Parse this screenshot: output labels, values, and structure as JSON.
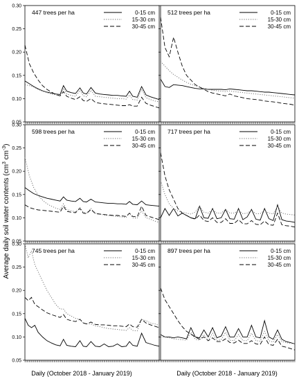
{
  "figure": {
    "ylabel_main": "Average daily soil water contents (cm",
    "ylabel_sup1": "3",
    "ylabel_mid": " cm",
    "ylabel_sup2": "-3",
    "ylabel_end": ")",
    "xlabel_left": "Daily (October 2018 - January 2019)",
    "xlabel_right": "Daily (October 2018 - January 2019)"
  },
  "chart_data": [
    {
      "type": "line",
      "title": "447 trees per ha",
      "ylim": [
        0.05,
        0.3
      ],
      "yticks": [
        0.05,
        0.1,
        0.15,
        0.2,
        0.25,
        0.3
      ],
      "ytick_labels": [
        "0.05",
        "0.10",
        "0.15",
        "0.20",
        "0.25",
        "0.30"
      ],
      "x": [
        0,
        4,
        8,
        12,
        16,
        20,
        24,
        28,
        32,
        35,
        38,
        42,
        46,
        50,
        53,
        56,
        60,
        64,
        68,
        72,
        76,
        80,
        84,
        88,
        92,
        95,
        98,
        102,
        106,
        110,
        114,
        118,
        122
      ],
      "series": [
        {
          "name": "0-15 cm",
          "style": "solid",
          "values": [
            0.138,
            0.132,
            0.126,
            0.121,
            0.117,
            0.114,
            0.112,
            0.11,
            0.109,
            0.128,
            0.116,
            0.113,
            0.111,
            0.123,
            0.112,
            0.11,
            0.124,
            0.112,
            0.11,
            0.109,
            0.108,
            0.107,
            0.107,
            0.106,
            0.105,
            0.116,
            0.105,
            0.103,
            0.126,
            0.108,
            0.104,
            0.101,
            0.098
          ]
        },
        {
          "name": "15-30 cm",
          "style": "dotted",
          "values": [
            0.13,
            0.128,
            0.125,
            0.12,
            0.116,
            0.113,
            0.11,
            0.108,
            0.106,
            0.122,
            0.11,
            0.107,
            0.105,
            0.118,
            0.106,
            0.104,
            0.118,
            0.105,
            0.104,
            0.103,
            0.102,
            0.101,
            0.1,
            0.1,
            0.099,
            0.108,
            0.098,
            0.097,
            0.12,
            0.102,
            0.098,
            0.095,
            0.093
          ]
        },
        {
          "name": "30-45 cm",
          "style": "dashed",
          "values": [
            0.215,
            0.175,
            0.155,
            0.14,
            0.128,
            0.12,
            0.114,
            0.109,
            0.106,
            0.115,
            0.105,
            0.101,
            0.098,
            0.104,
            0.096,
            0.094,
            0.1,
            0.092,
            0.09,
            0.089,
            0.088,
            0.087,
            0.086,
            0.085,
            0.085,
            0.087,
            0.084,
            0.084,
            0.103,
            0.09,
            0.086,
            0.083,
            0.08
          ]
        }
      ]
    },
    {
      "type": "line",
      "title": "512 trees per ha",
      "ylim": [
        0.05,
        0.3
      ],
      "yticks": [
        0.05,
        0.1,
        0.15,
        0.2,
        0.25,
        0.3
      ],
      "ytick_labels": [
        "",
        "",
        "",
        "",
        "",
        ""
      ],
      "x": [
        0,
        4,
        8,
        12,
        16,
        20,
        24,
        28,
        32,
        36,
        40,
        44,
        48,
        52,
        56,
        60,
        64,
        68,
        72,
        76,
        80,
        84,
        88,
        92,
        96,
        100,
        104,
        108,
        112,
        116,
        120,
        124
      ],
      "series": [
        {
          "name": "0-15 cm",
          "style": "solid",
          "values": [
            0.142,
            0.126,
            0.124,
            0.13,
            0.129,
            0.128,
            0.126,
            0.124,
            0.122,
            0.121,
            0.121,
            0.12,
            0.12,
            0.12,
            0.12,
            0.119,
            0.121,
            0.12,
            0.119,
            0.118,
            0.117,
            0.117,
            0.116,
            0.115,
            0.114,
            0.114,
            0.113,
            0.112,
            0.111,
            0.11,
            0.109,
            0.108
          ]
        },
        {
          "name": "15-30 cm",
          "style": "dotted",
          "values": [
            0.18,
            0.17,
            0.16,
            0.152,
            0.146,
            0.14,
            0.135,
            0.131,
            0.128,
            0.125,
            0.122,
            0.12,
            0.118,
            0.117,
            0.116,
            0.115,
            0.117,
            0.115,
            0.114,
            0.113,
            0.112,
            0.111,
            0.11,
            0.109,
            0.108,
            0.107,
            0.106,
            0.105,
            0.104,
            0.103,
            0.102,
            0.101
          ]
        },
        {
          "name": "30-45 cm",
          "style": "dashed",
          "values": [
            0.275,
            0.21,
            0.19,
            0.232,
            0.2,
            0.17,
            0.15,
            0.14,
            0.13,
            0.125,
            0.12,
            0.115,
            0.112,
            0.11,
            0.108,
            0.106,
            0.11,
            0.106,
            0.104,
            0.102,
            0.1,
            0.099,
            0.098,
            0.097,
            0.095,
            0.094,
            0.093,
            0.092,
            0.09,
            0.089,
            0.088,
            0.086
          ]
        }
      ]
    },
    {
      "type": "line",
      "title": "598 trees per ha",
      "ylim": [
        0.05,
        0.3
      ],
      "yticks": [
        0.05,
        0.1,
        0.15,
        0.2,
        0.25,
        0.3
      ],
      "ytick_labels": [
        "0.05",
        "0.10",
        "0.15",
        "0.20",
        "0.25",
        "0.30"
      ],
      "x": [
        0,
        4,
        8,
        12,
        16,
        20,
        24,
        28,
        32,
        35,
        38,
        42,
        46,
        50,
        53,
        56,
        60,
        64,
        68,
        72,
        76,
        80,
        84,
        88,
        92,
        95,
        98,
        102,
        106,
        110,
        114,
        118,
        122
      ],
      "series": [
        {
          "name": "0-15 cm",
          "style": "solid",
          "values": [
            0.165,
            0.158,
            0.152,
            0.148,
            0.145,
            0.142,
            0.14,
            0.138,
            0.136,
            0.145,
            0.138,
            0.136,
            0.135,
            0.142,
            0.135,
            0.134,
            0.14,
            0.134,
            0.133,
            0.132,
            0.131,
            0.131,
            0.13,
            0.13,
            0.129,
            0.135,
            0.129,
            0.128,
            0.136,
            0.128,
            0.127,
            0.126,
            0.125
          ]
        },
        {
          "name": "15-30 cm",
          "style": "dotted",
          "values": [
            0.23,
            0.19,
            0.165,
            0.148,
            0.138,
            0.13,
            0.125,
            0.121,
            0.118,
            0.13,
            0.118,
            0.115,
            0.113,
            0.122,
            0.112,
            0.11,
            0.12,
            0.11,
            0.108,
            0.106,
            0.105,
            0.104,
            0.103,
            0.102,
            0.101,
            0.11,
            0.1,
            0.099,
            0.115,
            0.1,
            0.097,
            0.093,
            0.09
          ]
        },
        {
          "name": "30-45 cm",
          "style": "dashed",
          "values": [
            0.128,
            0.122,
            0.119,
            0.117,
            0.116,
            0.115,
            0.114,
            0.113,
            0.112,
            0.125,
            0.114,
            0.112,
            0.111,
            0.12,
            0.11,
            0.109,
            0.118,
            0.109,
            0.108,
            0.107,
            0.106,
            0.105,
            0.105,
            0.104,
            0.103,
            0.11,
            0.103,
            0.102,
            0.125,
            0.105,
            0.102,
            0.099,
            0.096
          ]
        }
      ]
    },
    {
      "type": "line",
      "title": "717 trees per ha",
      "ylim": [
        0.05,
        0.3
      ],
      "yticks": [
        0.05,
        0.1,
        0.15,
        0.2,
        0.25,
        0.3
      ],
      "ytick_labels": [
        "",
        "",
        "",
        "",
        "",
        ""
      ],
      "x": [
        0,
        4,
        8,
        12,
        16,
        20,
        24,
        28,
        32,
        36,
        40,
        44,
        48,
        52,
        56,
        60,
        64,
        68,
        72,
        76,
        80,
        84,
        88,
        92,
        96,
        100,
        104,
        108,
        112,
        116,
        120,
        124
      ],
      "series": [
        {
          "name": "0-15 cm",
          "style": "solid",
          "values": [
            0.1,
            0.12,
            0.105,
            0.12,
            0.104,
            0.11,
            0.105,
            0.1,
            0.098,
            0.125,
            0.1,
            0.099,
            0.12,
            0.098,
            0.1,
            0.118,
            0.098,
            0.097,
            0.12,
            0.096,
            0.102,
            0.118,
            0.097,
            0.095,
            0.12,
            0.098,
            0.094,
            0.128,
            0.096,
            0.093,
            0.092,
            0.09
          ]
        },
        {
          "name": "15-30 cm",
          "style": "dotted",
          "values": [
            0.18,
            0.15,
            0.13,
            0.12,
            0.115,
            0.112,
            0.11,
            0.108,
            0.112,
            0.125,
            0.112,
            0.11,
            0.118,
            0.11,
            0.11,
            0.118,
            0.11,
            0.11,
            0.116,
            0.109,
            0.11,
            0.116,
            0.109,
            0.109,
            0.116,
            0.11,
            0.108,
            0.125,
            0.11,
            0.108,
            0.107,
            0.106
          ]
        },
        {
          "name": "30-45 cm",
          "style": "dashed",
          "values": [
            0.24,
            0.19,
            0.16,
            0.14,
            0.12,
            0.11,
            0.105,
            0.1,
            0.097,
            0.106,
            0.094,
            0.092,
            0.1,
            0.09,
            0.09,
            0.098,
            0.088,
            0.088,
            0.096,
            0.087,
            0.087,
            0.094,
            0.086,
            0.085,
            0.093,
            0.085,
            0.084,
            0.11,
            0.085,
            0.083,
            0.082,
            0.08
          ]
        }
      ]
    },
    {
      "type": "line",
      "title": "745 trees per ha",
      "ylim": [
        0.05,
        0.3
      ],
      "yticks": [
        0.05,
        0.1,
        0.15,
        0.2,
        0.25,
        0.3
      ],
      "ytick_labels": [
        "0.05",
        "0.10",
        "0.15",
        "0.20",
        "0.25",
        "0.30"
      ],
      "x": [
        0,
        3,
        6,
        9,
        12,
        16,
        20,
        24,
        28,
        32,
        35,
        38,
        42,
        46,
        50,
        53,
        56,
        60,
        64,
        68,
        72,
        76,
        80,
        84,
        88,
        92,
        95,
        98,
        102,
        106,
        110,
        114,
        118,
        122
      ],
      "series": [
        {
          "name": "0-15 cm",
          "style": "solid",
          "values": [
            0.14,
            0.125,
            0.12,
            0.125,
            0.11,
            0.1,
            0.092,
            0.087,
            0.083,
            0.081,
            0.095,
            0.082,
            0.08,
            0.079,
            0.092,
            0.08,
            0.079,
            0.09,
            0.08,
            0.079,
            0.085,
            0.079,
            0.08,
            0.085,
            0.079,
            0.08,
            0.09,
            0.082,
            0.08,
            0.108,
            0.088,
            0.085,
            0.082,
            0.08
          ]
        },
        {
          "name": "15-30 cm",
          "style": "dotted",
          "values": [
            0.3,
            0.27,
            0.285,
            0.255,
            0.24,
            0.22,
            0.2,
            0.185,
            0.17,
            0.16,
            0.16,
            0.15,
            0.145,
            0.14,
            0.138,
            0.13,
            0.128,
            0.128,
            0.124,
            0.122,
            0.12,
            0.118,
            0.117,
            0.116,
            0.115,
            0.114,
            0.12,
            0.114,
            0.113,
            0.138,
            0.135,
            0.13,
            0.128,
            0.125
          ]
        },
        {
          "name": "30-45 cm",
          "style": "dashed",
          "values": [
            0.185,
            0.178,
            0.185,
            0.17,
            0.165,
            0.158,
            0.152,
            0.148,
            0.145,
            0.142,
            0.148,
            0.138,
            0.135,
            0.133,
            0.138,
            0.13,
            0.128,
            0.132,
            0.127,
            0.126,
            0.126,
            0.125,
            0.124,
            0.124,
            0.123,
            0.122,
            0.128,
            0.122,
            0.121,
            0.138,
            0.13,
            0.126,
            0.123,
            0.12
          ]
        }
      ]
    },
    {
      "type": "line",
      "title": "897 trees per ha",
      "ylim": [
        0.05,
        0.3
      ],
      "yticks": [
        0.05,
        0.1,
        0.15,
        0.2,
        0.25,
        0.3
      ],
      "ytick_labels": [
        "",
        "",
        "",
        "",
        "",
        ""
      ],
      "x": [
        0,
        4,
        8,
        12,
        16,
        20,
        24,
        28,
        32,
        36,
        40,
        44,
        48,
        52,
        56,
        60,
        64,
        68,
        72,
        76,
        80,
        84,
        88,
        92,
        96,
        100,
        104,
        108,
        112,
        116,
        120,
        124
      ],
      "series": [
        {
          "name": "0-15 cm",
          "style": "solid",
          "values": [
            0.105,
            0.1,
            0.1,
            0.098,
            0.1,
            0.098,
            0.096,
            0.12,
            0.1,
            0.098,
            0.115,
            0.1,
            0.12,
            0.098,
            0.102,
            0.122,
            0.1,
            0.1,
            0.118,
            0.1,
            0.1,
            0.125,
            0.1,
            0.098,
            0.135,
            0.1,
            0.095,
            0.115,
            0.095,
            0.09,
            0.088,
            0.085
          ]
        },
        {
          "name": "15-30 cm",
          "style": "dotted",
          "values": [
            0.1,
            0.1,
            0.098,
            0.096,
            0.095,
            0.094,
            0.093,
            0.11,
            0.095,
            0.093,
            0.105,
            0.092,
            0.108,
            0.092,
            0.094,
            0.11,
            0.093,
            0.092,
            0.105,
            0.092,
            0.092,
            0.108,
            0.092,
            0.091,
            0.112,
            0.092,
            0.089,
            0.105,
            0.09,
            0.088,
            0.086,
            0.085
          ]
        },
        {
          "name": "30-45 cm",
          "style": "dashed",
          "values": [
            0.205,
            0.18,
            0.165,
            0.15,
            0.135,
            0.122,
            0.112,
            0.106,
            0.1,
            0.095,
            0.1,
            0.092,
            0.098,
            0.09,
            0.09,
            0.096,
            0.088,
            0.087,
            0.093,
            0.086,
            0.086,
            0.092,
            0.085,
            0.084,
            0.1,
            0.084,
            0.082,
            0.095,
            0.08,
            0.078,
            0.075,
            0.072
          ]
        }
      ]
    }
  ]
}
